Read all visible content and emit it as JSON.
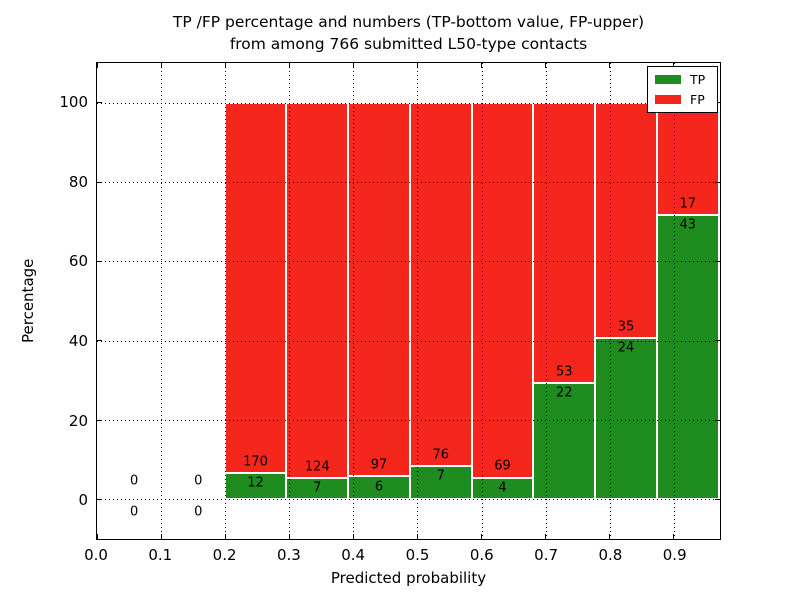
{
  "title": {
    "line1": "TP /FP percentage and numbers (TP-bottom value, FP-upper)",
    "line2": "from among 766 submitted L50-type contacts"
  },
  "axes": {
    "xlabel": "Predicted probability",
    "ylabel": "Percentage",
    "x_tick_labels": [
      "0.0",
      "0.1",
      "0.2",
      "0.3",
      "0.4",
      "0.5",
      "0.6",
      "0.7",
      "0.8",
      "0.9"
    ],
    "x_tick_values": [
      0.0,
      0.1,
      0.2,
      0.3,
      0.4,
      0.5,
      0.6,
      0.7,
      0.8,
      0.9
    ],
    "y_tick_labels": [
      "0",
      "20",
      "40",
      "60",
      "80",
      "100"
    ],
    "y_tick_values": [
      0,
      20,
      40,
      60,
      80,
      100
    ]
  },
  "legend": {
    "items": [
      {
        "label": "TP",
        "color": "#1e8c1e"
      },
      {
        "label": "FP",
        "color": "#f5271d"
      }
    ],
    "position": "upper right"
  },
  "colors": {
    "tp": "#1e8c1e",
    "fp": "#f5271d",
    "grid": "#000000",
    "bar_edge": "#ffffff",
    "spine": "#000000"
  },
  "chart_data": {
    "type": "bar",
    "stacked": true,
    "normalized_to_percent": true,
    "title": "TP /FP percentage and numbers (TP-bottom value, FP-upper) from among 766 submitted L50-type contacts",
    "xlabel": "Predicted probability",
    "ylabel": "Percentage",
    "total_contacts": 766,
    "bin_starts": [
      0.0,
      0.1,
      0.2,
      0.3,
      0.4,
      0.5,
      0.6,
      0.7,
      0.8,
      0.9
    ],
    "series": [
      {
        "name": "TP",
        "color": "#1e8c1e",
        "values": [
          0,
          0,
          12,
          7,
          6,
          7,
          4,
          22,
          24,
          43
        ]
      },
      {
        "name": "FP",
        "color": "#f5271d",
        "values": [
          0,
          0,
          170,
          124,
          97,
          76,
          69,
          53,
          35,
          17
        ]
      }
    ],
    "tp_percent_per_bin": [
      null,
      null,
      6.59,
      5.34,
      5.83,
      8.43,
      5.48,
      29.33,
      40.68,
      71.67
    ],
    "xlim": [
      0,
      0.972
    ],
    "ylim": [
      -10,
      110
    ],
    "grid": true,
    "grid_style": "dotted",
    "legend_position": "upper right",
    "bar_geometry": {
      "first_bar_left": 0.1991,
      "bar_width": 0.09635,
      "zero_label_x_offset": 0.058
    }
  }
}
